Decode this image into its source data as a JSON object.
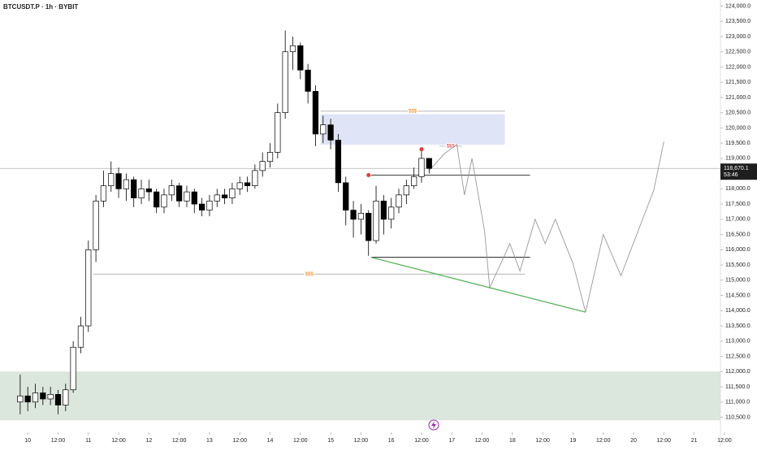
{
  "chart_data": {
    "type": "candlestick",
    "title": "BTCUSDT.P · 1h · BYBIT",
    "x": [
      -3,
      0,
      3,
      6,
      9,
      12,
      15,
      18,
      21,
      24,
      27,
      30,
      33,
      36,
      39,
      42,
      45,
      48,
      51,
      54,
      57,
      60,
      63,
      66,
      69,
      72,
      75,
      78,
      81,
      84,
      87,
      90,
      93,
      96,
      99,
      102,
      105,
      108,
      111,
      114,
      117,
      120,
      123,
      126,
      129,
      132,
      135,
      138,
      141,
      144,
      147,
      150,
      153,
      156,
      159
    ],
    "open": [
      111000,
      111200,
      111000,
      111300,
      111100,
      111250,
      110900,
      111400,
      112800,
      113500,
      116000,
      117600,
      118100,
      118500,
      118000,
      118300,
      117700,
      118000,
      117900,
      117400,
      117800,
      118100,
      117600,
      117900,
      117500,
      117300,
      117600,
      117800,
      117700,
      118000,
      118200,
      118100,
      118600,
      118900,
      119200,
      120500,
      122500,
      122700,
      121900,
      121200,
      119800,
      120100,
      119600,
      118200,
      117300,
      117000,
      117200,
      116300,
      117600,
      117000,
      117400,
      117800,
      118100,
      118400,
      119000
    ],
    "high": [
      111900,
      111500,
      111600,
      111500,
      111500,
      111400,
      111600,
      113000,
      113800,
      116300,
      117800,
      118600,
      118900,
      118700,
      118500,
      118400,
      118300,
      118300,
      118000,
      118000,
      118300,
      118200,
      118100,
      118000,
      117700,
      117800,
      118000,
      118000,
      118200,
      118400,
      118400,
      118800,
      119200,
      119500,
      120800,
      123200,
      123000,
      122800,
      122100,
      121400,
      120400,
      120300,
      119800,
      118400,
      117600,
      117500,
      117300,
      118100,
      117800,
      117700,
      118000,
      118300,
      118700,
      119300,
      119000
    ],
    "low": [
      110600,
      110700,
      110800,
      110900,
      110900,
      110600,
      110700,
      111300,
      112600,
      113300,
      115600,
      117400,
      117900,
      117700,
      117600,
      117400,
      117500,
      117600,
      117200,
      117200,
      117600,
      117400,
      117400,
      117200,
      117100,
      117100,
      117400,
      117500,
      117500,
      117800,
      117900,
      118000,
      118400,
      118700,
      119000,
      120300,
      121900,
      121600,
      120800,
      119400,
      119500,
      119300,
      117900,
      116800,
      116400,
      116500,
      115800,
      116200,
      116500,
      116700,
      117200,
      117500,
      118000,
      118200,
      118500
    ],
    "close": [
      111200,
      111000,
      111300,
      111100,
      111250,
      110900,
      111400,
      112800,
      113500,
      116000,
      117600,
      118100,
      118500,
      118000,
      118300,
      117700,
      118000,
      117900,
      117400,
      117800,
      118100,
      117600,
      117900,
      117500,
      117300,
      117600,
      117800,
      117700,
      118000,
      118200,
      118100,
      118600,
      118900,
      119200,
      120500,
      122500,
      122700,
      121900,
      121200,
      119800,
      120100,
      119600,
      118200,
      117300,
      117000,
      117200,
      116300,
      117600,
      117000,
      117400,
      117800,
      118100,
      118400,
      119000,
      118670
    ],
    "up_color": "#ffffff",
    "down_color": "#000000",
    "wick_color": "#000000",
    "xlim": [
      -11,
      277
    ],
    "ylim": [
      110000,
      124200
    ],
    "xticks": [
      {
        "value": 0,
        "label": "10"
      },
      {
        "value": 12,
        "label": "12:00"
      },
      {
        "value": 24,
        "label": "11"
      },
      {
        "value": 36,
        "label": "12:00"
      },
      {
        "value": 48,
        "label": "12"
      },
      {
        "value": 60,
        "label": "12:00"
      },
      {
        "value": 72,
        "label": "13"
      },
      {
        "value": 84,
        "label": "12:00"
      },
      {
        "value": 96,
        "label": "14"
      },
      {
        "value": 108,
        "label": "12:00"
      },
      {
        "value": 120,
        "label": "15"
      },
      {
        "value": 132,
        "label": "12:00"
      },
      {
        "value": 144,
        "label": "16"
      },
      {
        "value": 156,
        "label": "12:00"
      },
      {
        "value": 168,
        "label": "17"
      },
      {
        "value": 180,
        "label": "12:00"
      },
      {
        "value": 192,
        "label": "18"
      },
      {
        "value": 204,
        "label": "12:00"
      },
      {
        "value": 216,
        "label": "19"
      },
      {
        "value": 228,
        "label": "12:00"
      },
      {
        "value": 240,
        "label": "20"
      },
      {
        "value": 252,
        "label": "12:00"
      },
      {
        "value": 264,
        "label": "21"
      },
      {
        "value": 276,
        "label": "12:00"
      }
    ],
    "yticks": [
      {
        "value": 110500,
        "label": "110,500.0"
      },
      {
        "value": 111000,
        "label": "111,000.0"
      },
      {
        "value": 111500,
        "label": "111,500.0"
      },
      {
        "value": 112000,
        "label": "112,000.0"
      },
      {
        "value": 112500,
        "label": "112,500.0"
      },
      {
        "value": 113000,
        "label": "113,000.0"
      },
      {
        "value": 113500,
        "label": "113,500.0"
      },
      {
        "value": 114000,
        "label": "114,000.0"
      },
      {
        "value": 114500,
        "label": "114,500.0"
      },
      {
        "value": 115000,
        "label": "115,000.0"
      },
      {
        "value": 115500,
        "label": "115,500.0"
      },
      {
        "value": 116000,
        "label": "116,000.0"
      },
      {
        "value": 116500,
        "label": "116,500.0"
      },
      {
        "value": 117000,
        "label": "117,000.0"
      },
      {
        "value": 117500,
        "label": "117,500.0"
      },
      {
        "value": 118000,
        "label": "118,000.0"
      },
      {
        "value": 118500,
        "label": "118,500.0"
      },
      {
        "value": 119000,
        "label": "119,000.0"
      },
      {
        "value": 119500,
        "label": "119,500.0"
      },
      {
        "value": 120000,
        "label": "120,000.0"
      },
      {
        "value": 120500,
        "label": "120,500.0"
      },
      {
        "value": 121000,
        "label": "121,000.0"
      },
      {
        "value": 121500,
        "label": "121,500.0"
      },
      {
        "value": 122000,
        "label": "122,000.0"
      },
      {
        "value": 122500,
        "label": "122,500.0"
      },
      {
        "value": 123000,
        "label": "123,000.0"
      },
      {
        "value": 123500,
        "label": "123,500.0"
      },
      {
        "value": 124000,
        "label": "124,000.0"
      }
    ],
    "last_price": {
      "value": 118670.1,
      "label": "118,670.1"
    },
    "countdown": "53:46",
    "zones": [
      {
        "x": [
          -11,
          277
        ],
        "y": [
          110400,
          112000
        ],
        "color": "#dbe6dd"
      },
      {
        "x": [
          116,
          189
        ],
        "y": [
          119450,
          120450
        ],
        "color": "#dfe4f6"
      }
    ],
    "levels": [
      {
        "label": "$$$",
        "x": [
          26,
          197
        ],
        "y": 115200,
        "color": "#aaaaaa",
        "label_color": "#f57c00"
      },
      {
        "label": "$$$",
        "x": [
          116,
          189
        ],
        "y": 120550,
        "color": "#aaaaaa",
        "label_color": "#f57c00"
      },
      {
        "label": "$$$",
        "x": [
          163,
          172
        ],
        "y": 119400,
        "color": "#aaaaaa",
        "label_color": "#e53935"
      },
      {
        "x": [
          136,
          199
        ],
        "y": 118450,
        "color": "#000000"
      },
      {
        "x": [
          136,
          199
        ],
        "y": 115750,
        "color": "#000000"
      }
    ],
    "trendline": {
      "x": [
        136,
        221
      ],
      "y": [
        115750,
        113950
      ],
      "color": "#4caf50"
    },
    "projection": {
      "x": [
        159,
        165,
        170,
        173,
        176,
        181,
        183,
        191,
        195,
        201,
        205,
        209,
        216,
        221,
        228,
        235,
        248,
        252
      ],
      "y": [
        118600,
        119150,
        119450,
        117800,
        119000,
        116600,
        114750,
        116200,
        115300,
        117000,
        116200,
        117000,
        115550,
        113950,
        116500,
        115150,
        117950,
        119550
      ],
      "color": "#999999"
    },
    "markers": {
      "x": [
        135,
        156
      ],
      "y": [
        118450,
        119300
      ],
      "color": "#e53935"
    }
  }
}
